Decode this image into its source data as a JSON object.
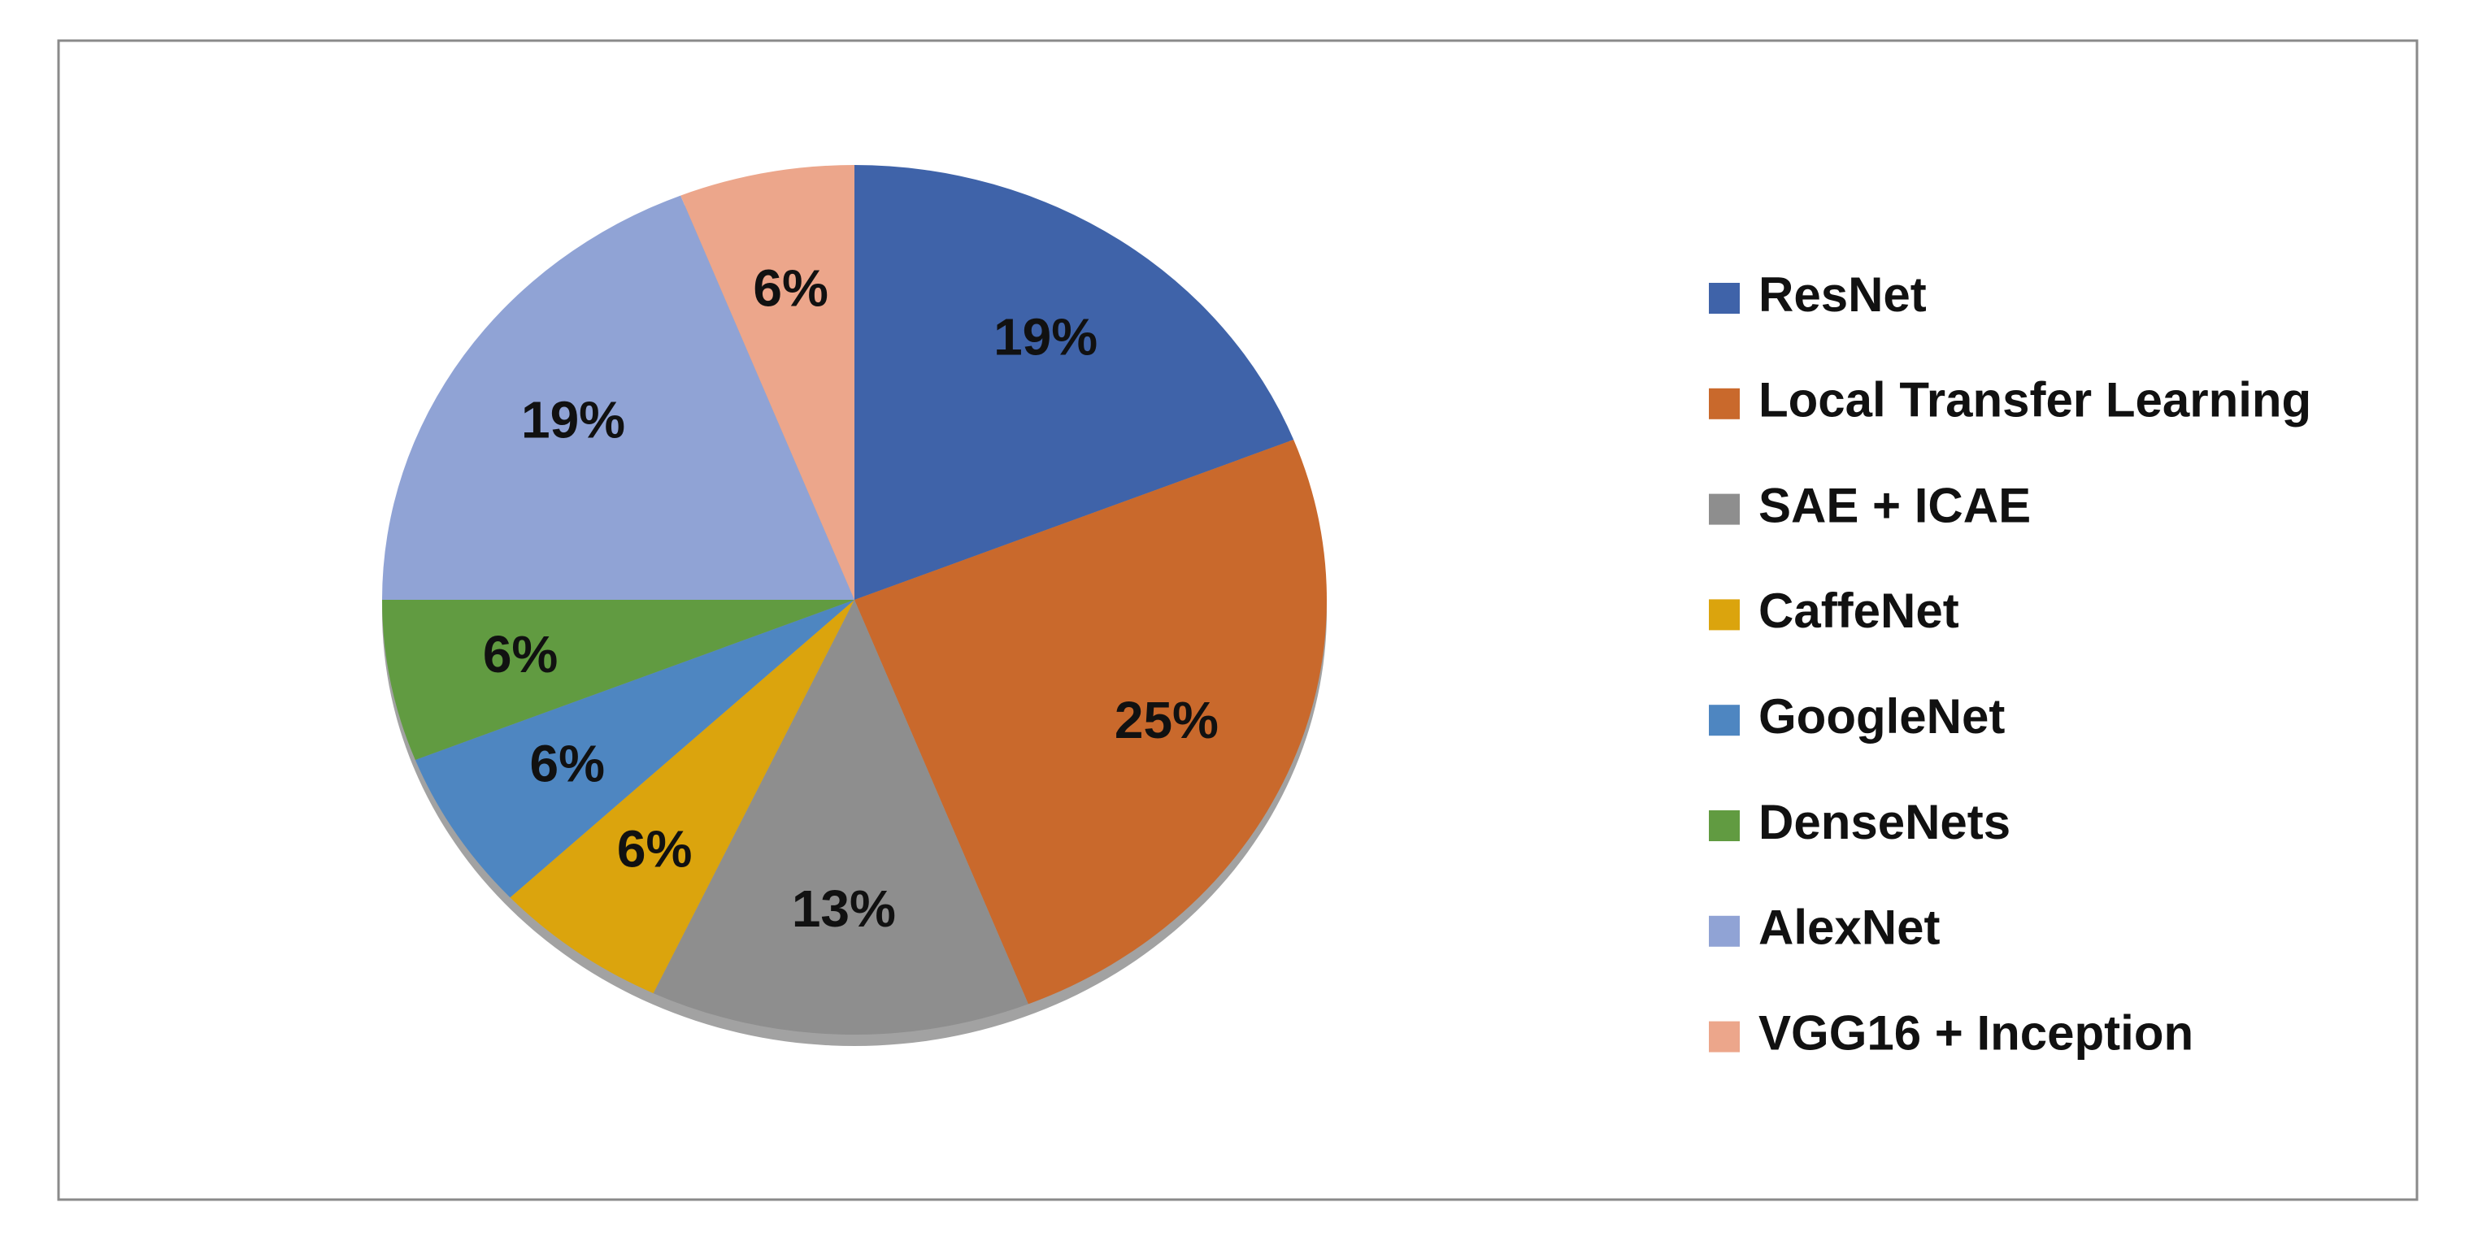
{
  "chart_data": {
    "type": "pie",
    "categories": [
      "ResNet",
      "Local Transfer Learning",
      "SAE + ICAE",
      "CaffeNet",
      "GoogleNet",
      "DenseNets",
      "AlexNet",
      "VGG16 + Inception"
    ],
    "values": [
      19,
      25,
      13,
      6,
      6,
      6,
      19,
      6
    ],
    "value_labels": [
      "19%",
      "25%",
      "13%",
      "6%",
      "6%",
      "6%",
      "19%",
      "6%"
    ],
    "colors": [
      "#3f63a9",
      "#c9692c",
      "#8e8e8e",
      "#dba40d",
      "#4e86c1",
      "#619b41",
      "#90a3d5",
      "#eca68b"
    ],
    "legend": "right"
  }
}
